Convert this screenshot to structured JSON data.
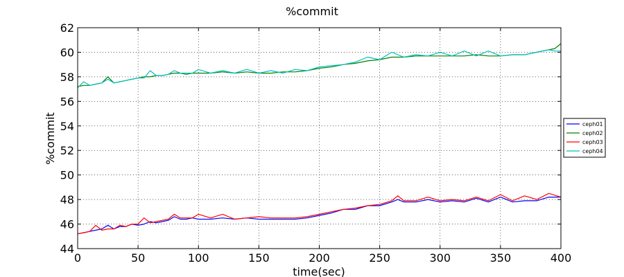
{
  "chart_data": {
    "type": "line",
    "title": "%commit",
    "xlabel": "time(sec)",
    "ylabel": "%commit",
    "xlim": [
      0,
      400
    ],
    "ylim": [
      44,
      62
    ],
    "xticks": [
      0,
      50,
      100,
      150,
      200,
      250,
      300,
      350,
      400
    ],
    "yticks": [
      44,
      46,
      48,
      50,
      52,
      54,
      56,
      58,
      60,
      62
    ],
    "grid": true,
    "legend_position": "right",
    "series": [
      {
        "name": "ceph01",
        "color": "#0000ff",
        "x": [
          0,
          5,
          10,
          15,
          20,
          25,
          30,
          35,
          40,
          45,
          50,
          55,
          60,
          65,
          70,
          75,
          80,
          85,
          90,
          95,
          100,
          110,
          120,
          130,
          140,
          150,
          160,
          170,
          180,
          190,
          200,
          210,
          220,
          230,
          240,
          250,
          260,
          265,
          270,
          280,
          290,
          300,
          310,
          320,
          330,
          340,
          350,
          360,
          370,
          380,
          390,
          400
        ],
        "y": [
          45.2,
          45.3,
          45.4,
          45.5,
          45.6,
          45.9,
          45.6,
          45.8,
          45.8,
          46.0,
          45.9,
          46.0,
          46.2,
          46.1,
          46.2,
          46.3,
          46.6,
          46.4,
          46.4,
          46.5,
          46.4,
          46.4,
          46.5,
          46.4,
          46.5,
          46.4,
          46.4,
          46.4,
          46.4,
          46.5,
          46.7,
          46.9,
          47.2,
          47.2,
          47.5,
          47.5,
          47.8,
          48.0,
          47.8,
          47.8,
          48.0,
          47.8,
          47.9,
          47.8,
          48.1,
          47.8,
          48.2,
          47.8,
          47.9,
          47.9,
          48.2,
          48.2
        ]
      },
      {
        "name": "ceph02",
        "color": "#008000",
        "x": [
          0,
          5,
          10,
          15,
          20,
          25,
          30,
          35,
          40,
          45,
          50,
          55,
          60,
          65,
          70,
          75,
          80,
          85,
          90,
          95,
          100,
          110,
          120,
          130,
          140,
          150,
          160,
          170,
          180,
          190,
          200,
          210,
          220,
          230,
          240,
          250,
          260,
          270,
          280,
          290,
          300,
          310,
          320,
          330,
          340,
          350,
          360,
          370,
          380,
          390,
          395,
          400
        ],
        "y": [
          57.2,
          57.3,
          57.3,
          57.4,
          57.5,
          58.0,
          57.5,
          57.6,
          57.7,
          57.8,
          57.9,
          58.0,
          58.0,
          58.1,
          58.1,
          58.2,
          58.3,
          58.3,
          58.2,
          58.3,
          58.3,
          58.3,
          58.4,
          58.3,
          58.4,
          58.3,
          58.3,
          58.4,
          58.4,
          58.5,
          58.7,
          58.8,
          59.0,
          59.1,
          59.3,
          59.4,
          59.6,
          59.6,
          59.7,
          59.7,
          59.7,
          59.7,
          59.7,
          59.8,
          59.7,
          59.7,
          59.8,
          59.8,
          60.0,
          60.2,
          60.3,
          60.7
        ]
      },
      {
        "name": "ceph03",
        "color": "#ff0000",
        "x": [
          0,
          5,
          10,
          15,
          20,
          25,
          30,
          35,
          40,
          45,
          50,
          55,
          60,
          65,
          70,
          75,
          80,
          85,
          90,
          95,
          100,
          110,
          120,
          130,
          140,
          150,
          160,
          170,
          180,
          190,
          200,
          210,
          220,
          230,
          240,
          250,
          260,
          265,
          270,
          280,
          290,
          300,
          310,
          320,
          330,
          340,
          350,
          360,
          370,
          380,
          390,
          400
        ],
        "y": [
          45.2,
          45.3,
          45.4,
          45.9,
          45.5,
          45.6,
          45.6,
          45.9,
          45.8,
          46.0,
          46.0,
          46.5,
          46.1,
          46.2,
          46.3,
          46.4,
          46.8,
          46.5,
          46.5,
          46.5,
          46.8,
          46.5,
          46.8,
          46.4,
          46.5,
          46.6,
          46.5,
          46.5,
          46.5,
          46.6,
          46.8,
          47.0,
          47.2,
          47.3,
          47.5,
          47.6,
          47.9,
          48.3,
          47.9,
          47.9,
          48.2,
          47.9,
          48.0,
          47.9,
          48.2,
          47.9,
          48.4,
          47.9,
          48.3,
          48.0,
          48.5,
          48.2
        ]
      },
      {
        "name": "ceph04",
        "color": "#00bfbf",
        "x": [
          0,
          5,
          10,
          15,
          20,
          25,
          30,
          35,
          40,
          45,
          50,
          55,
          60,
          65,
          70,
          75,
          80,
          85,
          90,
          95,
          100,
          110,
          120,
          130,
          140,
          150,
          160,
          170,
          180,
          190,
          200,
          210,
          220,
          230,
          240,
          250,
          260,
          270,
          280,
          290,
          300,
          310,
          320,
          330,
          340,
          350,
          360,
          370,
          380,
          390,
          395,
          400
        ],
        "y": [
          57.1,
          57.6,
          57.3,
          57.4,
          57.5,
          57.8,
          57.5,
          57.6,
          57.7,
          57.8,
          57.9,
          57.9,
          58.5,
          58.1,
          58.1,
          58.2,
          58.5,
          58.3,
          58.3,
          58.3,
          58.6,
          58.3,
          58.5,
          58.3,
          58.6,
          58.3,
          58.5,
          58.3,
          58.6,
          58.5,
          58.8,
          58.9,
          59.0,
          59.2,
          59.6,
          59.4,
          60.0,
          59.6,
          59.8,
          59.7,
          60.0,
          59.7,
          60.1,
          59.7,
          60.1,
          59.7,
          59.8,
          59.8,
          60.0,
          60.2,
          60.1,
          60.1
        ]
      }
    ]
  }
}
